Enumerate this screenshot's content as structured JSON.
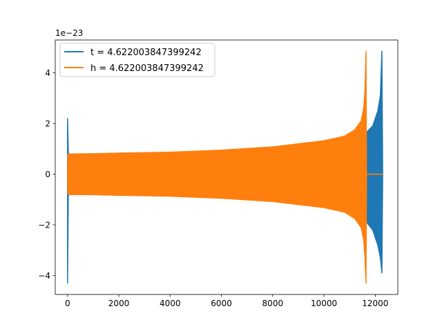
{
  "chart_data": {
    "type": "line",
    "title": "",
    "xlabel": "",
    "ylabel": "",
    "y_offset_label": "1e−23",
    "xlim": [
      -480,
      12880
    ],
    "ylim": [
      -4.75,
      5.3
    ],
    "x_ticks": [
      0,
      2000,
      4000,
      6000,
      8000,
      10000,
      12000
    ],
    "y_ticks": [
      -4,
      -2,
      0,
      2,
      4
    ],
    "x_tick_labels": [
      "0",
      "2000",
      "4000",
      "6000",
      "8000",
      "10000",
      "12000"
    ],
    "y_tick_labels": [
      "−4",
      "−2",
      "0",
      "2",
      "4"
    ],
    "grid": false,
    "legend_position": "upper-left",
    "series": [
      {
        "name": "t = 4.622003847399242",
        "color": "#1f77b4",
        "envelope": {
          "x": [
            0,
            30,
            60,
            120,
            300,
            1000,
            2000,
            4000,
            6000,
            8000,
            10000,
            11000,
            11600,
            11650,
            11700,
            11900,
            12100,
            12200,
            12260,
            12290,
            12300
          ],
          "upper": [
            2.2,
            0.85,
            0.8,
            0.8,
            0.8,
            0.8,
            0.83,
            0.86,
            0.93,
            1.05,
            1.25,
            1.4,
            1.55,
            1.6,
            1.7,
            1.9,
            2.5,
            3.1,
            4.85,
            0.0,
            0.0
          ],
          "lower": [
            -4.3,
            -0.85,
            -0.8,
            -0.8,
            -0.8,
            -0.8,
            -0.83,
            -0.86,
            -0.93,
            -1.05,
            -1.25,
            -1.4,
            -1.7,
            -1.8,
            -1.95,
            -2.2,
            -2.8,
            -3.3,
            -3.9,
            0.0,
            0.0
          ]
        }
      },
      {
        "name": "h = 4.622003847399242",
        "color": "#ff7f0e",
        "envelope": {
          "x": [
            0,
            10,
            20,
            300,
            1000,
            2000,
            4000,
            6000,
            8000,
            10000,
            10800,
            11200,
            11450,
            11550,
            11600,
            11640,
            11660,
            11670,
            12300
          ],
          "upper": [
            0.0,
            0.6,
            0.8,
            0.8,
            0.81,
            0.83,
            0.87,
            0.95,
            1.08,
            1.32,
            1.5,
            1.75,
            2.1,
            2.6,
            3.3,
            4.85,
            0.0,
            0.0,
            0.0
          ],
          "lower": [
            0.0,
            -0.6,
            -0.8,
            -0.8,
            -0.81,
            -0.83,
            -0.87,
            -0.95,
            -1.08,
            -1.32,
            -1.5,
            -1.75,
            -2.1,
            -2.6,
            -3.3,
            -4.3,
            0.0,
            0.0,
            0.0
          ]
        }
      }
    ]
  }
}
